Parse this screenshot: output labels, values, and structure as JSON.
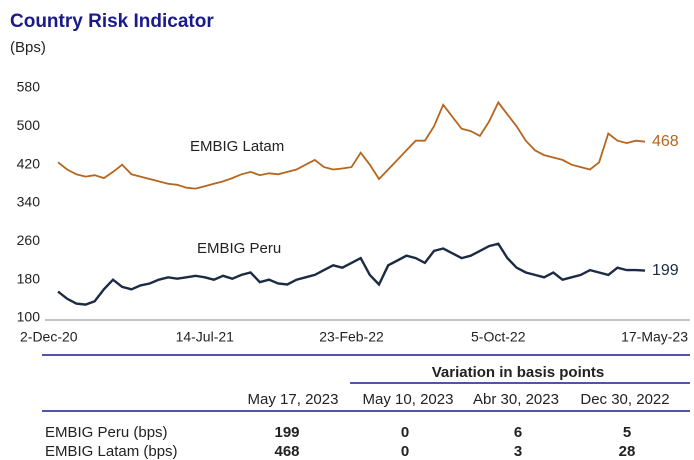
{
  "chart_data": {
    "type": "line",
    "title": "Country Risk Indicator",
    "subtitle": "(Bps)",
    "categories": [
      "2-Dec-20",
      null,
      null,
      null,
      null,
      null,
      null,
      null,
      null,
      null,
      null,
      null,
      null,
      null,
      null,
      null,
      "14-Jul-21",
      null,
      null,
      null,
      null,
      null,
      null,
      null,
      null,
      null,
      null,
      null,
      null,
      null,
      null,
      null,
      "23-Feb-22",
      null,
      null,
      null,
      null,
      null,
      null,
      null,
      null,
      null,
      null,
      null,
      null,
      null,
      null,
      null,
      "5-Oct-22",
      null,
      null,
      null,
      null,
      null,
      null,
      null,
      null,
      null,
      null,
      null,
      null,
      null,
      null,
      null,
      "17-May-23"
    ],
    "series": [
      {
        "name": "EMBIG Latam",
        "color": "#b5661f",
        "values": [
          425,
          410,
          400,
          395,
          398,
          392,
          405,
          420,
          400,
          395,
          390,
          385,
          380,
          378,
          372,
          370,
          375,
          380,
          385,
          392,
          400,
          405,
          398,
          402,
          400,
          405,
          410,
          420,
          430,
          415,
          410,
          412,
          415,
          445,
          420,
          390,
          410,
          430,
          450,
          470,
          470,
          500,
          545,
          520,
          495,
          490,
          480,
          510,
          550,
          525,
          500,
          470,
          450,
          440,
          435,
          430,
          420,
          415,
          410,
          425,
          485,
          470,
          465,
          470,
          468
        ]
      },
      {
        "name": "EMBIG Peru",
        "color": "#1c2b44",
        "values": [
          155,
          140,
          130,
          128,
          135,
          160,
          180,
          165,
          160,
          168,
          172,
          180,
          185,
          182,
          185,
          188,
          185,
          180,
          188,
          182,
          190,
          195,
          175,
          180,
          172,
          170,
          180,
          185,
          190,
          200,
          210,
          205,
          215,
          225,
          190,
          170,
          210,
          220,
          230,
          225,
          215,
          240,
          245,
          235,
          225,
          230,
          240,
          250,
          255,
          225,
          205,
          195,
          190,
          185,
          195,
          180,
          185,
          190,
          200,
          195,
          190,
          205,
          200,
          200,
          199
        ]
      }
    ],
    "ylim": [
      100,
      580
    ],
    "yticks": [
      100,
      180,
      260,
      340,
      420,
      500,
      580
    ],
    "grid": false
  },
  "table": {
    "group_header": "Variation in basis points",
    "columns": [
      "May 17, 2023",
      "May 10, 2023",
      "Abr 30, 2023",
      "Dec 30, 2022"
    ],
    "rows": [
      [
        "EMBIG Peru (bps)",
        199,
        0,
        6,
        5
      ],
      [
        "EMBIG Latam (bps)",
        468,
        0,
        3,
        28
      ]
    ]
  }
}
